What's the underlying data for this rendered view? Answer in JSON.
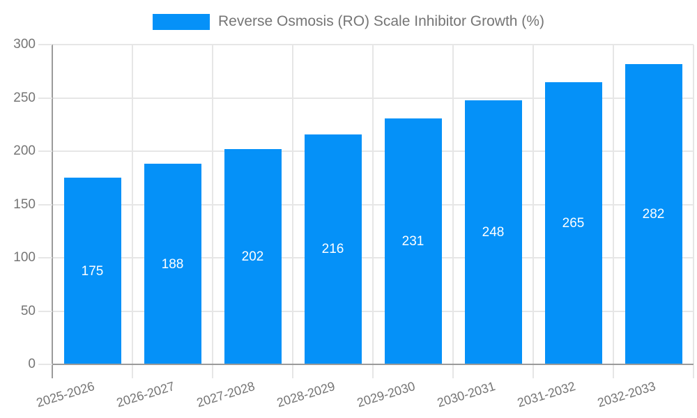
{
  "legend": {
    "label": "Reverse Osmosis (RO) Scale Inhibitor Growth (%)"
  },
  "chart_data": {
    "type": "bar",
    "title": "Reverse Osmosis (RO) Scale Inhibitor Growth (%)",
    "categories": [
      "2025-2026",
      "2026-2027",
      "2027-2028",
      "2028-2029",
      "2029-2030",
      "2030-2031",
      "2031-2032",
      "2032-2033"
    ],
    "values": [
      175,
      188,
      202,
      216,
      231,
      248,
      265,
      282
    ],
    "xlabel": "",
    "ylabel": "",
    "ylim": [
      0,
      300
    ],
    "yticks": [
      0,
      50,
      100,
      150,
      200,
      250,
      300
    ],
    "grid": true,
    "legend_position": "top",
    "colors": {
      "bar": "#0591f8",
      "value_label": "#ffffff",
      "axis_text": "#757575",
      "axis_line": "#9a9a9a",
      "gridline": "#e6e6e6",
      "background": "#ffffff"
    }
  }
}
